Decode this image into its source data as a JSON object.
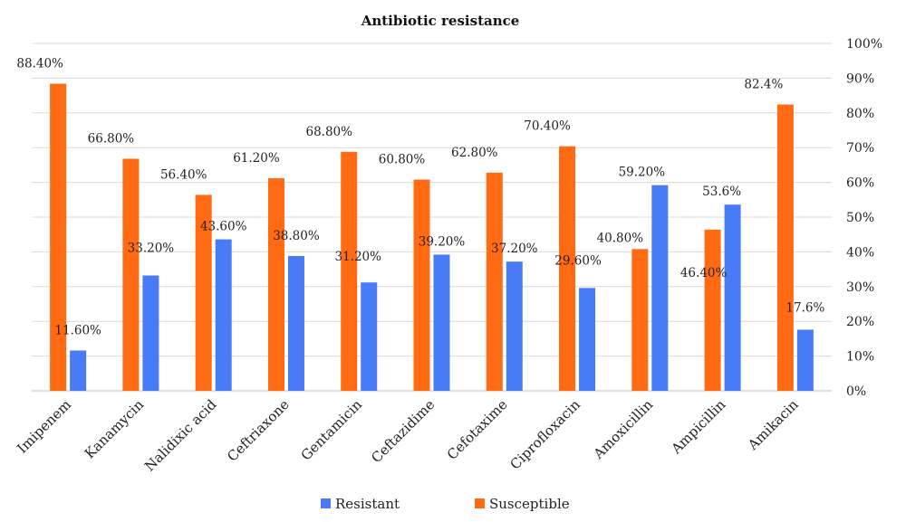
{
  "chart_data": {
    "type": "bar",
    "title": "Antibiotic resistance",
    "categories": [
      "Imipenem",
      "Kanamycin",
      "Nalidixic acid",
      "Ceftriaxone",
      "Gentamicin",
      "Ceftazidime",
      "Cefotaxime",
      "Ciprofloxacin",
      "Amoxicillin",
      "Ampicillin",
      "Amikacin"
    ],
    "series": [
      {
        "name": "Susceptible",
        "color": "#FF6A13",
        "values": [
          88.4,
          66.8,
          56.4,
          61.2,
          68.8,
          60.8,
          62.8,
          70.4,
          40.8,
          46.4,
          82.4
        ],
        "labels": [
          "88.40%",
          "66.80%",
          "56.40%",
          "61.20%",
          "68.80%",
          "60.80%",
          "62.80%",
          "70.40%",
          "40.80%",
          "46.40%",
          "82.4%"
        ]
      },
      {
        "name": "Resistant",
        "color": "#4A7BF7",
        "values": [
          11.6,
          33.2,
          43.6,
          38.8,
          31.2,
          39.2,
          37.2,
          29.6,
          59.2,
          53.6,
          17.6
        ],
        "labels": [
          "11.60%",
          "33.20%",
          "43.60%",
          "38.80%",
          "31.20%",
          "39.20%",
          "37.20%",
          "29.60%",
          "59.20%",
          "53.6%",
          "17.6%"
        ]
      }
    ],
    "ylim": [
      0,
      100
    ],
    "yticks": [
      "0%",
      "10%",
      "20%",
      "30%",
      "40%",
      "50%",
      "60%",
      "70%",
      "80%",
      "90%",
      "100%"
    ],
    "y_axis_side": "right",
    "grid": true,
    "legend": {
      "position": "bottom",
      "entries": [
        "Resistant",
        "Susceptible"
      ]
    }
  }
}
